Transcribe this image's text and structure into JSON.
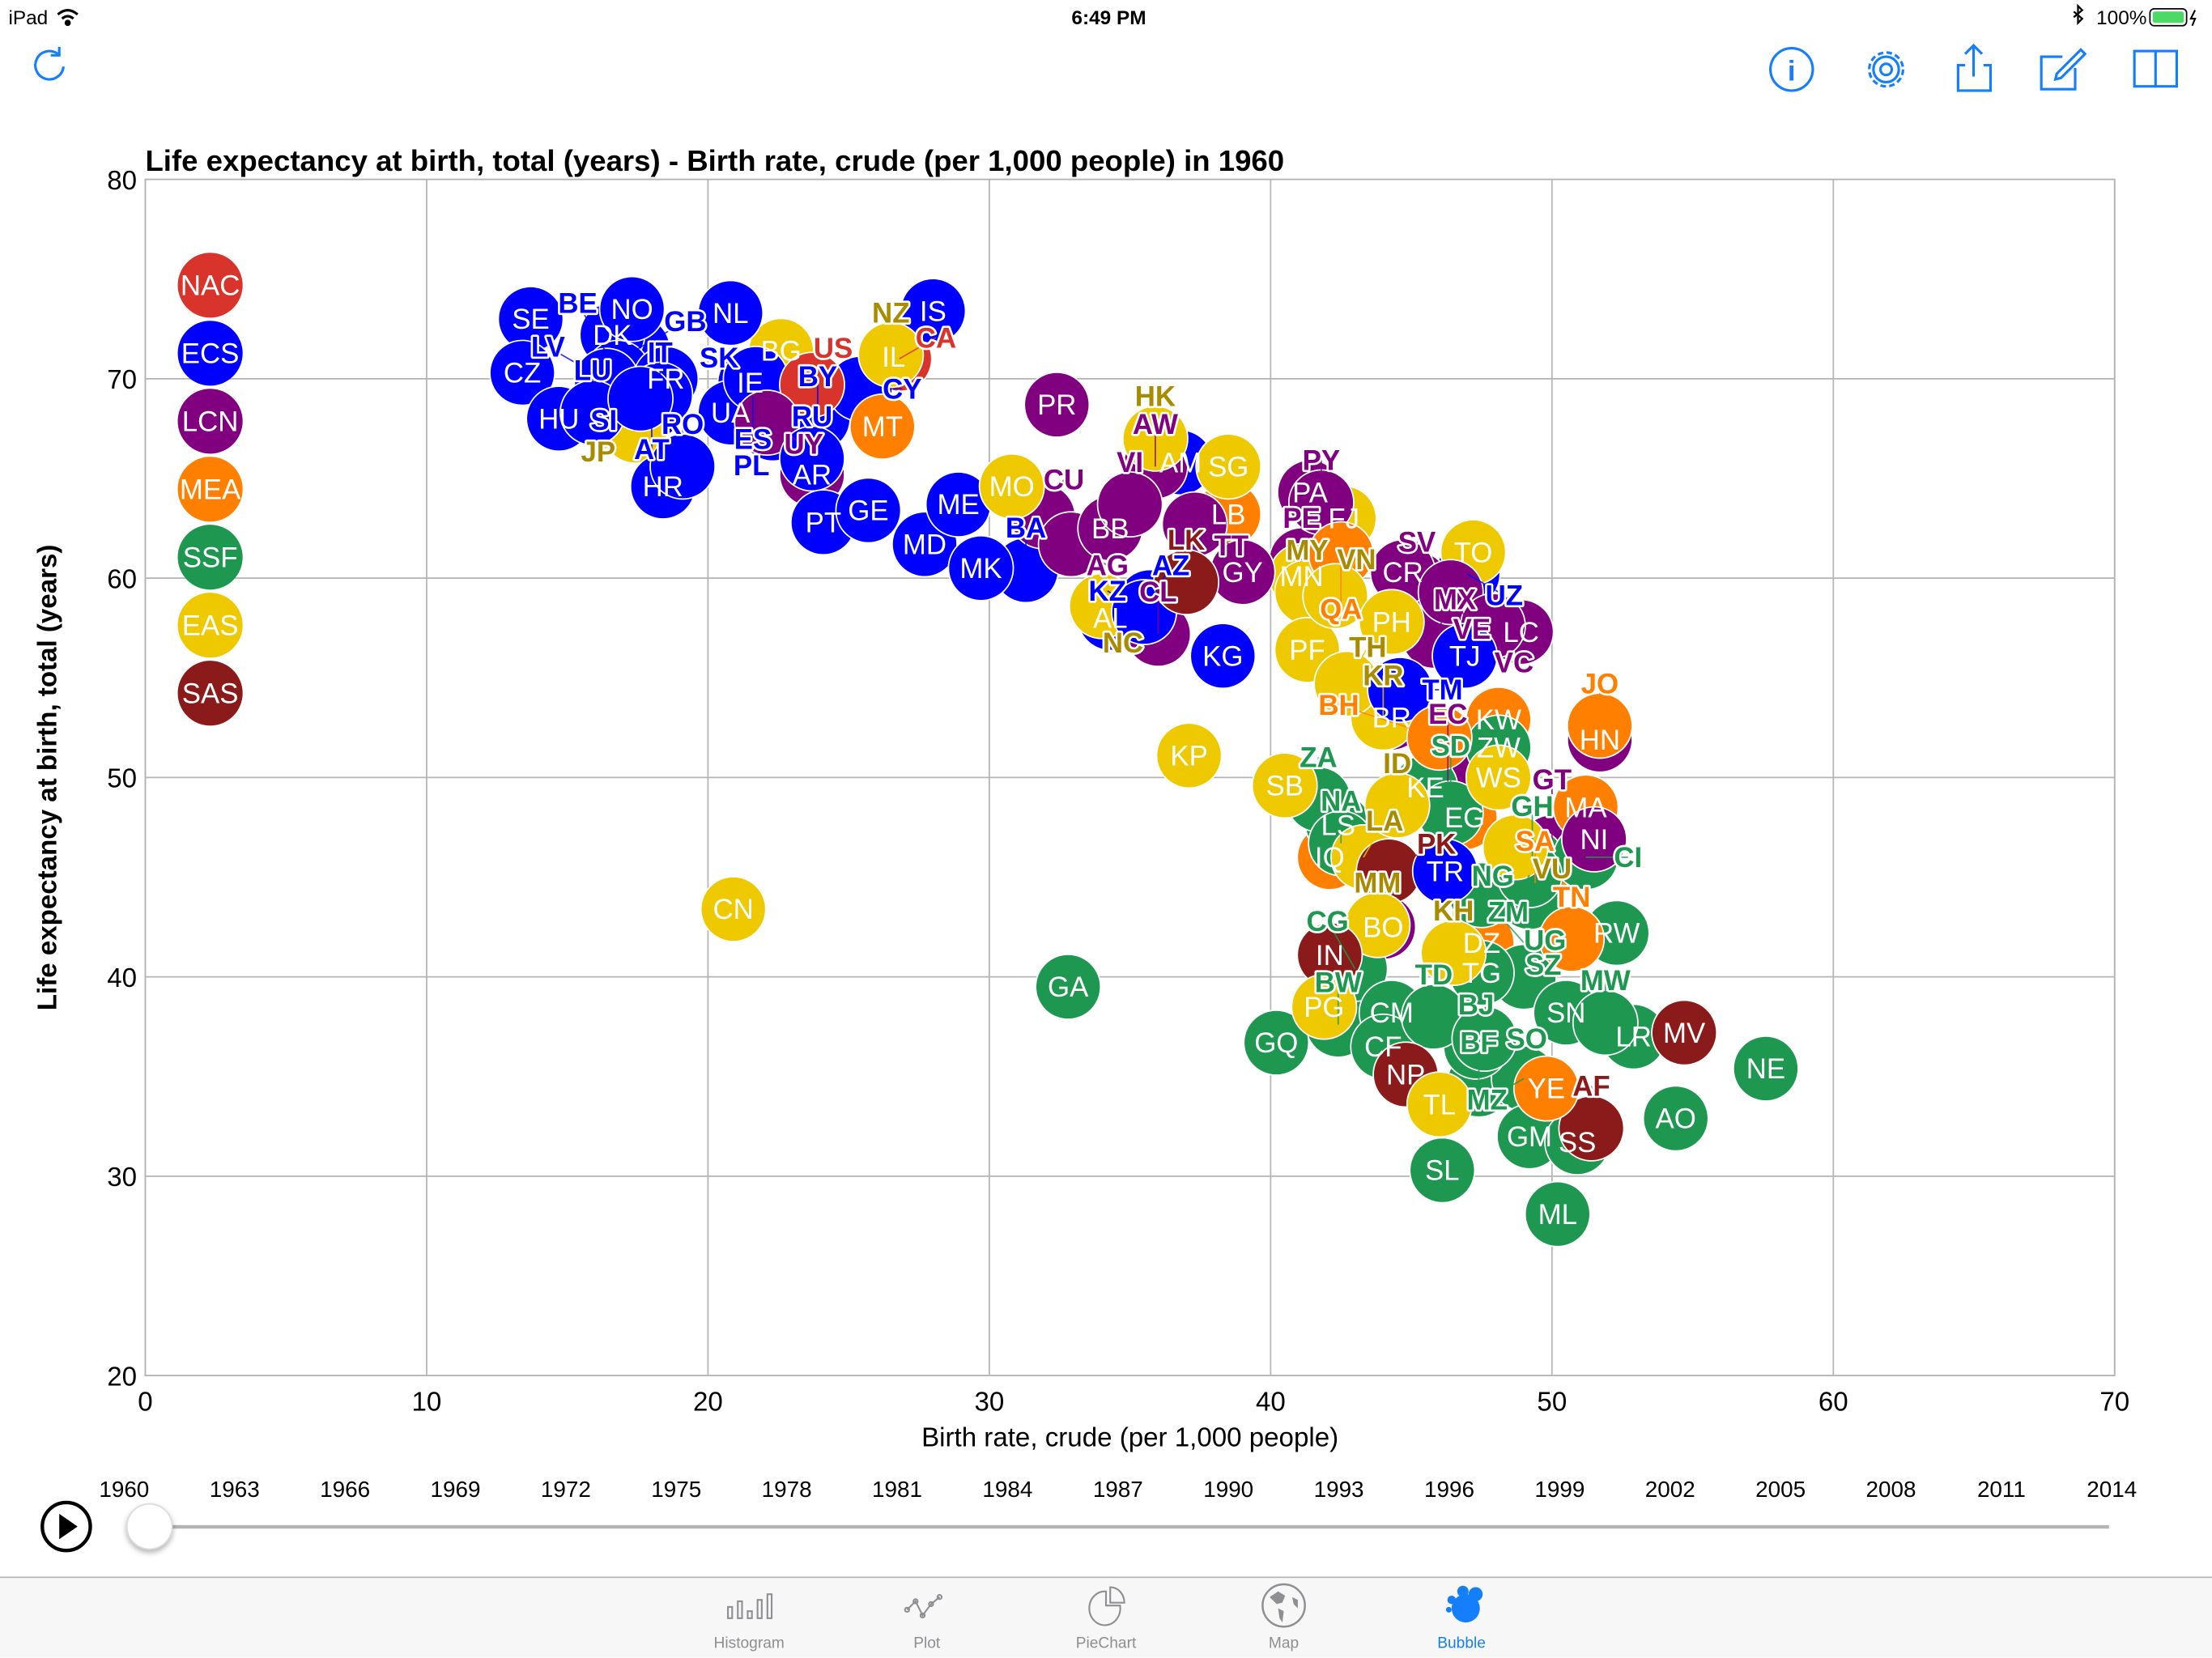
{
  "status_bar": {
    "device": "iPad",
    "time": "6:49 PM",
    "battery": "100%"
  },
  "toolbar": {
    "icons": [
      "refresh-icon",
      "info-icon",
      "gear-icon",
      "share-icon",
      "compose-icon",
      "book-icon"
    ]
  },
  "tab_bar": {
    "items": [
      {
        "label": "Histogram",
        "active": false
      },
      {
        "label": "Plot",
        "active": false
      },
      {
        "label": "PieChart",
        "active": false
      },
      {
        "label": "Map",
        "active": false
      },
      {
        "label": "Bubble",
        "active": true
      }
    ],
    "active_color": "#157efb",
    "inactive_color": "#8e8e93"
  },
  "timeline": {
    "years": [
      "1960",
      "1963",
      "1966",
      "1969",
      "1972",
      "1975",
      "1978",
      "1981",
      "1984",
      "1987",
      "1990",
      "1993",
      "1996",
      "1999",
      "2002",
      "2005",
      "2008",
      "2011",
      "2014"
    ],
    "current_year": "1960",
    "progress": 0
  },
  "chart_data": {
    "type": "scatter",
    "title": "Life expectancy at birth, total (years) - Birth rate, crude (per 1,000 people) in 1960",
    "xlabel": "Birth rate, crude (per 1,000 people)",
    "ylabel": "Life expectancy at birth, total (years)",
    "xlim": [
      0,
      70
    ],
    "ylim": [
      20,
      80
    ],
    "xticks": [
      "0",
      "10",
      "20",
      "30",
      "40",
      "50",
      "60",
      "70"
    ],
    "yticks": [
      "20",
      "30",
      "40",
      "50",
      "60",
      "70",
      "80"
    ],
    "grid": true,
    "legend_position": "top-left",
    "regions": [
      {
        "code": "NAC",
        "color": "#d9342b"
      },
      {
        "code": "ECS",
        "color": "#0000ff"
      },
      {
        "code": "LCN",
        "color": "#800080"
      },
      {
        "code": "MEA",
        "color": "#ff8000"
      },
      {
        "code": "SSF",
        "color": "#1e9850"
      },
      {
        "code": "EAS",
        "color": "#eec900"
      },
      {
        "code": "SAS",
        "color": "#8b1a1a"
      }
    ],
    "points": [
      {
        "label": "GB",
        "region": "ECS",
        "x": 17.5,
        "y": 71.5
      },
      {
        "label": "DK",
        "region": "ECS",
        "x": 16.6,
        "y": 72.2
      },
      {
        "label": "BE",
        "region": "ECS",
        "x": 16.8,
        "y": 70.3
      },
      {
        "label": "FR",
        "region": "ECS",
        "x": 18.5,
        "y": 70.0
      },
      {
        "label": "AT",
        "region": "ECS",
        "x": 18.0,
        "y": 68.6
      },
      {
        "label": "IT",
        "region": "ECS",
        "x": 18.3,
        "y": 69.2
      },
      {
        "label": "ES",
        "region": "ECS",
        "x": 21.6,
        "y": 69.1
      },
      {
        "label": "PL",
        "region": "ECS",
        "x": 22.3,
        "y": 67.5
      },
      {
        "label": "IE",
        "region": "ECS",
        "x": 21.5,
        "y": 69.8
      },
      {
        "label": "BY",
        "region": "ECS",
        "x": 23.9,
        "y": 68.0
      },
      {
        "label": "AM",
        "region": "ECS",
        "x": 36.8,
        "y": 65.8
      },
      {
        "label": "BA",
        "region": "ECS",
        "x": 31.3,
        "y": 60.4
      },
      {
        "label": "AL",
        "region": "ECS",
        "x": 34.3,
        "y": 58.0
      },
      {
        "label": "AZ",
        "region": "ECS",
        "x": 35.7,
        "y": 58.8
      },
      {
        "label": "UZ",
        "region": "ECS",
        "x": 47.0,
        "y": 60.2
      },
      {
        "label": "IL",
        "region": "MEA",
        "x": 26.6,
        "y": 71.1
      },
      {
        "label": "CA",
        "region": "NAC",
        "x": 26.8,
        "y": 71.0
      },
      {
        "label": "BG",
        "region": "EAS",
        "x": 22.6,
        "y": 71.4
      },
      {
        "label": "JP",
        "region": "EAS",
        "x": 17.4,
        "y": 67.4
      },
      {
        "label": "FJ",
        "region": "EAS",
        "x": 42.6,
        "y": 63.0
      },
      {
        "label": "CL",
        "region": "LCN",
        "x": 36.0,
        "y": 57.2
      },
      {
        "label": "AR",
        "region": "LCN",
        "x": 23.7,
        "y": 65.2
      },
      {
        "label": "CU",
        "region": "LCN",
        "x": 31.9,
        "y": 63.1
      },
      {
        "label": "AG",
        "region": "LCN",
        "x": 32.9,
        "y": 61.7
      },
      {
        "label": "BB",
        "region": "LCN",
        "x": 34.3,
        "y": 62.5
      },
      {
        "label": "AW",
        "region": "LCN",
        "x": 35.9,
        "y": 65.6
      },
      {
        "label": "PA",
        "region": "LCN",
        "x": 41.4,
        "y": 64.3
      },
      {
        "label": "PE",
        "region": "LCN",
        "x": 41.1,
        "y": 60.9
      },
      {
        "label": "SV",
        "region": "LCN",
        "x": 45.2,
        "y": 59.7
      },
      {
        "label": "CR",
        "region": "LCN",
        "x": 44.7,
        "y": 60.3
      },
      {
        "label": "MX",
        "region": "LCN",
        "x": 45.8,
        "y": 57.1
      },
      {
        "label": "LC",
        "region": "LCN",
        "x": 48.9,
        "y": 57.3
      },
      {
        "label": "BR",
        "region": "LCN",
        "x": 44.3,
        "y": 53.0
      },
      {
        "label": "EC",
        "region": "LCN",
        "x": 46.3,
        "y": 49.8
      },
      {
        "label": "HN",
        "region": "LCN",
        "x": 51.7,
        "y": 51.9
      },
      {
        "label": "BO",
        "region": "LCN",
        "x": 44.0,
        "y": 42.5
      },
      {
        "label": "GT",
        "region": "LCN",
        "x": 50.0,
        "y": 46.5
      },
      {
        "label": "LB",
        "region": "MEA",
        "x": 38.5,
        "y": 63.2
      },
      {
        "label": "KW",
        "region": "MEA",
        "x": 48.1,
        "y": 52.9
      },
      {
        "label": "EG",
        "region": "MEA",
        "x": 46.9,
        "y": 48.0
      },
      {
        "label": "SA",
        "region": "MEA",
        "x": 49.4,
        "y": 44.7
      },
      {
        "label": "DZ",
        "region": "MEA",
        "x": 47.5,
        "y": 41.7
      },
      {
        "label": "IQ",
        "region": "MEA",
        "x": 42.1,
        "y": 46.0
      },
      {
        "label": "KE",
        "region": "SSF",
        "x": 45.5,
        "y": 49.5
      },
      {
        "label": "NG",
        "region": "SSF",
        "x": 49.2,
        "y": 44.0
      },
      {
        "label": "GH",
        "region": "SSF",
        "x": 49.3,
        "y": 45.8
      },
      {
        "label": "CI",
        "region": "SSF",
        "x": 51.2,
        "y": 46.0
      },
      {
        "label": "LS",
        "region": "SSF",
        "x": 42.4,
        "y": 47.6
      },
      {
        "label": "BW",
        "region": "SSF",
        "x": 42.4,
        "y": 37.6
      },
      {
        "label": "CG",
        "region": "SSF",
        "x": 43.0,
        "y": 40.4
      },
      {
        "label": "CM",
        "region": "SSF",
        "x": 44.3,
        "y": 38.2
      },
      {
        "label": "UG",
        "region": "SSF",
        "x": 49.0,
        "y": 40.0
      },
      {
        "label": "BF",
        "region": "SSF",
        "x": 47.4,
        "y": 34.6
      },
      {
        "label": "MZ",
        "region": "SSF",
        "x": 49.0,
        "y": 34.9
      },
      {
        "label": "BJ",
        "region": "SSF",
        "x": 47.3,
        "y": 36.5
      },
      {
        "label": "LR",
        "region": "SSF",
        "x": 52.9,
        "y": 37.0
      },
      {
        "label": "GQ",
        "region": "SSF",
        "x": 40.2,
        "y": 36.7
      },
      {
        "label": "CF",
        "region": "SSF",
        "x": 44.0,
        "y": 36.5
      },
      {
        "label": "TD",
        "region": "SSF",
        "x": 45.8,
        "y": 38.0
      },
      {
        "label": "SO",
        "region": "SSF",
        "x": 47.6,
        "y": 36.9
      },
      {
        "label": "GA",
        "region": "SSF",
        "x": 32.8,
        "y": 39.5
      },
      {
        "label": "ZW",
        "region": "SSF",
        "x": 48.1,
        "y": 51.5
      },
      {
        "label": "ZA",
        "region": "SSF",
        "x": 41.7,
        "y": 48.9
      },
      {
        "label": "NA",
        "region": "SSF",
        "x": 42.5,
        "y": 46.7
      },
      {
        "label": "SD",
        "region": "SSF",
        "x": 46.4,
        "y": 48.2
      },
      {
        "label": "SZ",
        "region": "SSF",
        "x": 47.5,
        "y": 44.1
      },
      {
        "label": "ZM",
        "region": "SSF",
        "x": 49.2,
        "y": 45.1
      },
      {
        "label": "RW",
        "region": "SSF",
        "x": 52.3,
        "y": 42.2
      },
      {
        "label": "TG",
        "region": "SSF",
        "x": 47.5,
        "y": 40.2
      },
      {
        "label": "SN",
        "region": "SSF",
        "x": 50.5,
        "y": 38.2
      },
      {
        "label": "MW",
        "region": "SSF",
        "x": 51.9,
        "y": 37.7
      },
      {
        "label": "GM",
        "region": "SSF",
        "x": 49.2,
        "y": 32.0
      },
      {
        "label": "SS",
        "region": "SSF",
        "x": 50.9,
        "y": 31.7
      },
      {
        "label": "SL",
        "region": "SSF",
        "x": 46.1,
        "y": 30.3
      },
      {
        "label": "ML",
        "region": "SSF",
        "x": 50.2,
        "y": 28.1
      },
      {
        "label": "AO",
        "region": "SSF",
        "x": 54.4,
        "y": 32.9
      },
      {
        "label": "NE",
        "region": "SSF",
        "x": 57.6,
        "y": 35.4
      },
      {
        "label": "MN",
        "region": "EAS",
        "x": 41.1,
        "y": 60.1
      },
      {
        "label": "MY",
        "region": "EAS",
        "x": 41.3,
        "y": 59.3
      },
      {
        "label": "SB",
        "region": "EAS",
        "x": 40.5,
        "y": 49.6
      },
      {
        "label": "LA",
        "region": "EAS",
        "x": 43.3,
        "y": 46.0
      },
      {
        "label": "SE",
        "region": "ECS",
        "x": 13.7,
        "y": 73.0
      },
      {
        "label": "NO",
        "region": "ECS",
        "x": 17.3,
        "y": 73.5
      },
      {
        "label": "NL",
        "region": "ECS",
        "x": 20.8,
        "y": 73.3
      },
      {
        "label": "IS",
        "region": "ECS",
        "x": 28.0,
        "y": 73.4
      },
      {
        "label": "CZ",
        "region": "ECS",
        "x": 13.4,
        "y": 70.3
      },
      {
        "label": "HU",
        "region": "ECS",
        "x": 14.7,
        "y": 68.0
      },
      {
        "label": "LV",
        "region": "ECS",
        "x": 16.4,
        "y": 69.9
      },
      {
        "label": "LU",
        "region": "ECS",
        "x": 15.9,
        "y": 68.3
      },
      {
        "label": "HR",
        "region": "ECS",
        "x": 18.4,
        "y": 64.6
      },
      {
        "label": "SI",
        "region": "ECS",
        "x": 17.6,
        "y": 69.0
      },
      {
        "label": "RO",
        "region": "ECS",
        "x": 19.1,
        "y": 65.6
      },
      {
        "label": "UA",
        "region": "ECS",
        "x": 20.8,
        "y": 68.3
      },
      {
        "label": "SK",
        "region": "ECS",
        "x": 21.7,
        "y": 70.0
      },
      {
        "label": "CY",
        "region": "ECS",
        "x": 25.4,
        "y": 69.5
      },
      {
        "label": "US",
        "region": "NAC",
        "x": 23.7,
        "y": 69.7
      },
      {
        "label": "UY",
        "region": "LCN",
        "x": 22.1,
        "y": 67.8
      },
      {
        "label": "NZ",
        "region": "EAS",
        "x": 26.5,
        "y": 71.2
      },
      {
        "label": "MT",
        "region": "MEA",
        "x": 26.2,
        "y": 67.6
      },
      {
        "label": "RU",
        "region": "ECS",
        "x": 23.7,
        "y": 66.0
      },
      {
        "label": "PT",
        "region": "ECS",
        "x": 24.1,
        "y": 62.8
      },
      {
        "label": "GE",
        "region": "ECS",
        "x": 25.7,
        "y": 63.4
      },
      {
        "label": "MD",
        "region": "ECS",
        "x": 27.7,
        "y": 61.7
      },
      {
        "label": "ME",
        "region": "ECS",
        "x": 28.9,
        "y": 63.7
      },
      {
        "label": "MK",
        "region": "ECS",
        "x": 29.7,
        "y": 60.5
      },
      {
        "label": "MO",
        "region": "EAS",
        "x": 30.8,
        "y": 64.6
      },
      {
        "label": "PR",
        "region": "LCN",
        "x": 32.4,
        "y": 68.7
      },
      {
        "label": "VI",
        "region": "LCN",
        "x": 35.0,
        "y": 63.7
      },
      {
        "label": "HK",
        "region": "EAS",
        "x": 35.9,
        "y": 67.0
      },
      {
        "label": "SG",
        "region": "EAS",
        "x": 38.5,
        "y": 65.6
      },
      {
        "label": "TT",
        "region": "LCN",
        "x": 37.3,
        "y": 62.7
      },
      {
        "label": "GY",
        "region": "LCN",
        "x": 39.0,
        "y": 60.3
      },
      {
        "label": "NC",
        "region": "EAS",
        "x": 34.0,
        "y": 58.6
      },
      {
        "label": "KZ",
        "region": "ECS",
        "x": 35.5,
        "y": 58.3
      },
      {
        "label": "LK",
        "region": "SAS",
        "x": 37.0,
        "y": 59.8
      },
      {
        "label": "KG",
        "region": "ECS",
        "x": 38.3,
        "y": 56.1
      },
      {
        "label": "PY",
        "region": "LCN",
        "x": 41.8,
        "y": 63.8
      },
      {
        "label": "QA",
        "region": "MEA",
        "x": 42.5,
        "y": 61.2
      },
      {
        "label": "PF",
        "region": "EAS",
        "x": 41.3,
        "y": 56.4
      },
      {
        "label": "TO",
        "region": "EAS",
        "x": 47.2,
        "y": 61.3
      },
      {
        "label": "VE",
        "region": "LCN",
        "x": 46.4,
        "y": 59.3
      },
      {
        "label": "VC",
        "region": "LCN",
        "x": 47.9,
        "y": 57.6
      },
      {
        "label": "TJ",
        "region": "ECS",
        "x": 46.9,
        "y": 56.1
      },
      {
        "label": "VN",
        "region": "EAS",
        "x": 42.3,
        "y": 59.1
      },
      {
        "label": "PH",
        "region": "EAS",
        "x": 44.3,
        "y": 57.8
      },
      {
        "label": "KR",
        "region": "EAS",
        "x": 44.0,
        "y": 53.0
      },
      {
        "label": "TH",
        "region": "EAS",
        "x": 42.7,
        "y": 54.7
      },
      {
        "label": "TM",
        "region": "ECS",
        "x": 44.6,
        "y": 54.4
      },
      {
        "label": "BH",
        "region": "MEA",
        "x": 46.0,
        "y": 52.0
      },
      {
        "label": "JO",
        "region": "MEA",
        "x": 51.7,
        "y": 52.6
      },
      {
        "label": "KP",
        "region": "EAS",
        "x": 37.1,
        "y": 51.1
      },
      {
        "label": "WS",
        "region": "EAS",
        "x": 48.1,
        "y": 50.0
      },
      {
        "label": "ID",
        "region": "EAS",
        "x": 44.5,
        "y": 48.6
      },
      {
        "label": "MA",
        "region": "MEA",
        "x": 51.2,
        "y": 48.5
      },
      {
        "label": "VU",
        "region": "EAS",
        "x": 48.7,
        "y": 46.5
      },
      {
        "label": "NI",
        "region": "LCN",
        "x": 51.5,
        "y": 46.9
      },
      {
        "label": "PK",
        "region": "SAS",
        "x": 44.2,
        "y": 45.3
      },
      {
        "label": "TR",
        "region": "ECS",
        "x": 46.2,
        "y": 45.3
      },
      {
        "label": "CN",
        "region": "EAS",
        "x": 20.9,
        "y": 43.4
      },
      {
        "label": "MM",
        "region": "EAS",
        "x": 43.8,
        "y": 42.6
      },
      {
        "label": "KH",
        "region": "EAS",
        "x": 46.5,
        "y": 41.2
      },
      {
        "label": "TN",
        "region": "MEA",
        "x": 50.7,
        "y": 41.9
      },
      {
        "label": "IN",
        "region": "SAS",
        "x": 42.1,
        "y": 41.1
      },
      {
        "label": "PG",
        "region": "EAS",
        "x": 41.9,
        "y": 38.5
      },
      {
        "label": "MV",
        "region": "SAS",
        "x": 54.7,
        "y": 37.2
      },
      {
        "label": "AF",
        "region": "SAS",
        "x": 51.4,
        "y": 32.4
      },
      {
        "label": "NP",
        "region": "SAS",
        "x": 44.8,
        "y": 35.1
      },
      {
        "label": "YE",
        "region": "MEA",
        "x": 49.8,
        "y": 34.4
      },
      {
        "label": "TL",
        "region": "EAS",
        "x": 46.0,
        "y": 33.6
      }
    ]
  }
}
